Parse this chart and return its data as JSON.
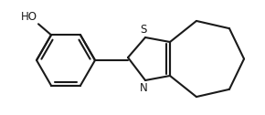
{
  "background_color": "#ffffff",
  "line_color": "#1a1a1a",
  "line_width": 1.5,
  "figsize": [
    2.9,
    1.26
  ],
  "dpi": 100,
  "xlim": [
    0,
    290
  ],
  "ylim": [
    0,
    126
  ]
}
